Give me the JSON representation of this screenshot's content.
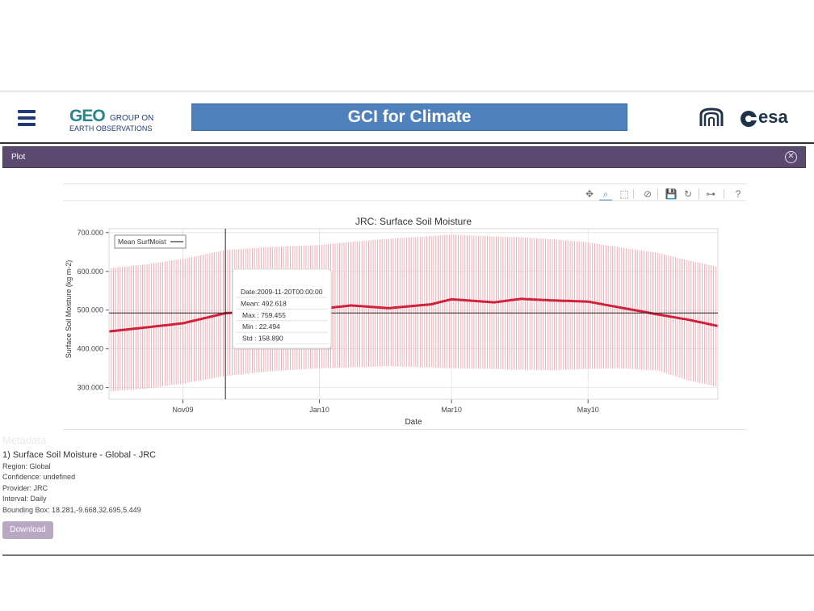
{
  "header": {
    "org_mark": "GEO",
    "org_line1": "GROUP ON",
    "org_line2": "EARTH OBSERVATIONS",
    "banner_title": "GCI for Climate",
    "partner_logo_text": "esa",
    "colors": {
      "banner": "#4f81bd",
      "nav": "#1f3c78"
    }
  },
  "plot_panel": {
    "title": "Plot",
    "close_icon": "close-circle-icon",
    "color": "#5b4a6f"
  },
  "toolbar": {
    "tools": [
      "pan-icon",
      "box-zoom-icon",
      "box-select-icon",
      "lasso-icon",
      "save-icon",
      "reset-icon",
      "hover-icon",
      "help-icon"
    ],
    "glyphs": [
      "✥",
      "⌕",
      "⬚",
      "⊘",
      "💾",
      "↻",
      "⊶",
      "?"
    ],
    "active": "box-zoom-icon"
  },
  "chart_data": {
    "type": "line",
    "title": "JRC: Surface Soil Moisture",
    "xlabel": "Date",
    "ylabel": "Surface Soil Moisture (kg m-2)",
    "ylim": [
      270,
      710
    ],
    "ytick_labels": [
      "300.000",
      "400.000",
      "500.000",
      "600.000",
      "700.000"
    ],
    "ytick_values": [
      300,
      400,
      500,
      600,
      700
    ],
    "xtick_labels": [
      "Nov09",
      "Jan10",
      "Mar10",
      "May10"
    ],
    "xtick_dates": [
      "2009-11-01",
      "2010-01-01",
      "2010-03-01",
      "2010-05-01"
    ],
    "x_range": [
      "2009-09-29",
      "2010-06-28"
    ],
    "legend": {
      "label": "Mean SurfMoist",
      "position": "top-left"
    },
    "grid": true,
    "crosshair": {
      "date": "2009-11-20",
      "value": 492.618
    },
    "series": [
      {
        "name": "Mean SurfMoist",
        "color": "#d0213a",
        "x": [
          "2009-09-29",
          "2009-10-15",
          "2009-11-01",
          "2009-11-20",
          "2009-12-10",
          "2010-01-01",
          "2010-01-15",
          "2010-02-01",
          "2010-02-20",
          "2010-03-01",
          "2010-03-20",
          "2010-04-01",
          "2010-04-15",
          "2010-05-01",
          "2010-05-15",
          "2010-06-01",
          "2010-06-15",
          "2010-06-28"
        ],
        "mean": [
          445,
          455,
          466,
          492,
          500,
          503,
          512,
          505,
          515,
          528,
          520,
          529,
          525,
          522,
          507,
          489,
          475,
          459
        ],
        "max": [
          608,
          618,
          632,
          655,
          663,
          668,
          676,
          684,
          691,
          695,
          690,
          688,
          683,
          675,
          662,
          648,
          628,
          612
        ],
        "min": [
          290,
          297,
          310,
          330,
          342,
          350,
          352,
          355,
          352,
          350,
          348,
          346,
          345,
          348,
          350,
          344,
          318,
          302
        ]
      }
    ]
  },
  "tooltip": {
    "rows": [
      {
        "label": "Date:",
        "value": "2009-11-20T00:00:00"
      },
      {
        "label": "Mean:",
        "value": "492.618"
      },
      {
        "label": "Max :",
        "value": "759.455"
      },
      {
        "label": "Min :",
        "value": "22.494"
      },
      {
        "label": "Std :",
        "value": "158.890"
      }
    ]
  },
  "metadata": {
    "heading": "Metadata",
    "title": "1) Surface Soil Moisture - Global - JRC",
    "lines": [
      "Region: Global",
      "Confidence: undefined",
      "Provider: JRC",
      "Interval: Daily",
      "Bounding Box: 18.281,-9.668,32.695,5.449"
    ],
    "download_label": "Download"
  }
}
